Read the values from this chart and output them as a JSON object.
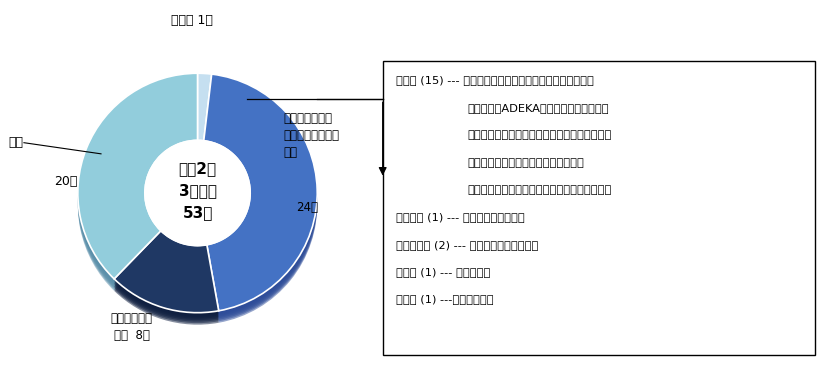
{
  "title_center": "令和2年\n3月卒業\n53名",
  "slices": [
    {
      "label_line1": "信州大学大学院",
      "label_line2": "総合理工学研究科",
      "label_line3": "進学",
      "count": 24,
      "color": "#4472C4",
      "shadow_color": "#2E4D99",
      "edge_color": "#3A5FA0"
    },
    {
      "label_line1": "就職",
      "label_line2": "",
      "label_line3": "",
      "count": 20,
      "color": "#92CDDC",
      "shadow_color": "#5A8FAA",
      "edge_color": "#7BBAD0"
    },
    {
      "label_line1": "その他",
      "label_line2": "",
      "label_line3": "",
      "count": 1,
      "color": "#C5DFF0",
      "shadow_color": "#8AAABB",
      "edge_color": "#A8C8E0"
    },
    {
      "label_line1": "他大学大学院",
      "label_line2": "進学",
      "label_line3": "",
      "count": 8,
      "color": "#1F3864",
      "shadow_color": "#0F1F40",
      "edge_color": "#172845"
    }
  ],
  "total": 53,
  "box_lines": [
    [
      "製造系 (15) ---",
      " 日本製紙、ウテナ、持田製薬、直富商事、"
    ],
    [
      "",
      "日本資材、ADEKA、サカイキャニング、"
    ],
    [
      "",
      "ジェイオーコスメティックス、三洋グラビア、"
    ],
    [
      "",
      "類グループ、近藤紡績所、中山商事、"
    ],
    [
      "",
      "金鶴食品製菓、マルコメ、スジャータめいらく"
    ],
    [
      "情報通信 (1) ---",
      " ハ十ニシステム開発"
    ],
    [
      "サービス系 (2) ---",
      " デリシア、ヴィエリス"
    ],
    [
      "公務員 (1) ---",
      " 中野市役所"
    ],
    [
      "その他 (1) ---",
      "エヌエヌ環境"
    ]
  ],
  "background_color": "#FFFFFF",
  "outer_r": 1.0,
  "inner_r": 0.44,
  "shadow_depth": 0.1,
  "shadow_steps": 8
}
